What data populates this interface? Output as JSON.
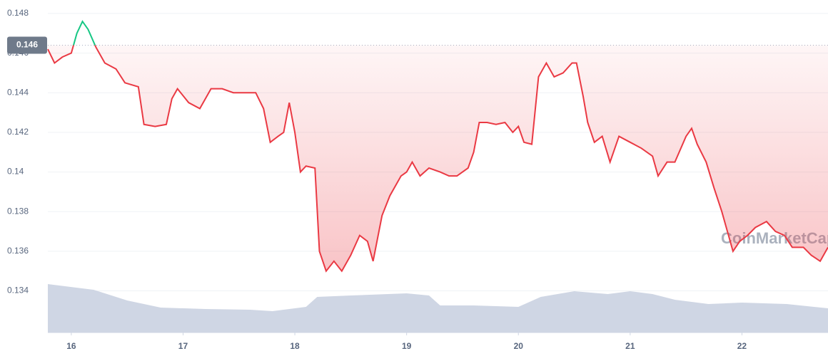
{
  "chart_data": {
    "type": "line",
    "x": [
      15.79,
      15.85,
      15.92,
      16.0,
      16.05,
      16.1,
      16.15,
      16.22,
      16.3,
      16.4,
      16.48,
      16.6,
      16.65,
      16.75,
      16.85,
      16.9,
      16.95,
      17.05,
      17.15,
      17.25,
      17.35,
      17.45,
      17.55,
      17.65,
      17.72,
      17.78,
      17.85,
      17.9,
      17.95,
      18.0,
      18.05,
      18.1,
      18.18,
      18.22,
      18.28,
      18.35,
      18.42,
      18.5,
      18.58,
      18.65,
      18.7,
      18.78,
      18.85,
      18.95,
      19.0,
      19.05,
      19.12,
      19.2,
      19.3,
      19.38,
      19.45,
      19.55,
      19.6,
      19.65,
      19.72,
      19.8,
      19.88,
      19.95,
      20.0,
      20.05,
      20.12,
      20.18,
      20.25,
      20.32,
      20.4,
      20.48,
      20.52,
      20.58,
      20.62,
      20.68,
      20.75,
      20.82,
      20.9,
      21.0,
      21.1,
      21.2,
      21.25,
      21.33,
      21.4,
      21.5,
      21.55,
      21.6,
      21.68,
      21.75,
      21.82,
      21.88,
      21.92,
      21.98,
      22.05,
      22.12,
      22.22,
      22.3,
      22.38,
      22.45,
      22.55,
      22.62,
      22.7,
      22.75,
      22.77
    ],
    "series": [
      {
        "color": "#ea3943",
        "up_color": "#16c784",
        "values": [
          0.1462,
          0.1455,
          0.1458,
          0.146,
          0.147,
          0.1476,
          0.1472,
          0.1463,
          0.1455,
          0.1452,
          0.1445,
          0.1443,
          0.1424,
          0.1423,
          0.1424,
          0.1437,
          0.1442,
          0.1435,
          0.1432,
          0.1442,
          0.1442,
          0.144,
          0.144,
          0.144,
          0.1432,
          0.1415,
          0.1418,
          0.142,
          0.1435,
          0.142,
          0.14,
          0.1403,
          0.1402,
          0.136,
          0.135,
          0.1355,
          0.135,
          0.1358,
          0.1368,
          0.1365,
          0.1355,
          0.1378,
          0.1388,
          0.1398,
          0.14,
          0.1405,
          0.1398,
          0.1402,
          0.14,
          0.1398,
          0.1398,
          0.1402,
          0.141,
          0.1425,
          0.1425,
          0.1424,
          0.1425,
          0.142,
          0.1423,
          0.1415,
          0.1414,
          0.1448,
          0.1455,
          0.1448,
          0.145,
          0.1455,
          0.1455,
          0.1438,
          0.1425,
          0.1415,
          0.1418,
          0.1405,
          0.1418,
          0.1415,
          0.1412,
          0.1408,
          0.1398,
          0.1405,
          0.1405,
          0.1418,
          0.1422,
          0.1414,
          0.1405,
          0.1392,
          0.138,
          0.1368,
          0.136,
          0.1365,
          0.1368,
          0.1372,
          0.1375,
          0.137,
          0.1368,
          0.1362,
          0.1362,
          0.1358,
          0.1355,
          0.136,
          0.1362
        ]
      }
    ],
    "volume": {
      "color": "#cfd6e4",
      "ylim": [
        0,
        80
      ],
      "x": [
        15.79,
        16.2,
        16.5,
        16.8,
        17.2,
        17.6,
        17.8,
        18.1,
        18.2,
        18.5,
        19.0,
        19.2,
        19.3,
        19.6,
        20.0,
        20.2,
        20.5,
        20.8,
        21.0,
        21.2,
        21.4,
        21.7,
        22.0,
        22.4,
        22.77
      ],
      "values": [
        68,
        60,
        45,
        35,
        33,
        32,
        30,
        36,
        50,
        52,
        55,
        52,
        38,
        38,
        36,
        50,
        58,
        54,
        58,
        54,
        46,
        40,
        42,
        40,
        34
      ]
    },
    "reference": {
      "value": 0.1464,
      "label": "0.146"
    },
    "xlim": [
      15.79,
      22.77
    ],
    "xticks": [
      16,
      17,
      18,
      19,
      20,
      21,
      22
    ],
    "ylim": [
      0.1319,
      0.1485
    ],
    "yticks": [
      0.134,
      0.136,
      0.138,
      0.14,
      0.142,
      0.144,
      0.146,
      0.148
    ],
    "grid": true,
    "watermark": "CoinMarketCap"
  }
}
